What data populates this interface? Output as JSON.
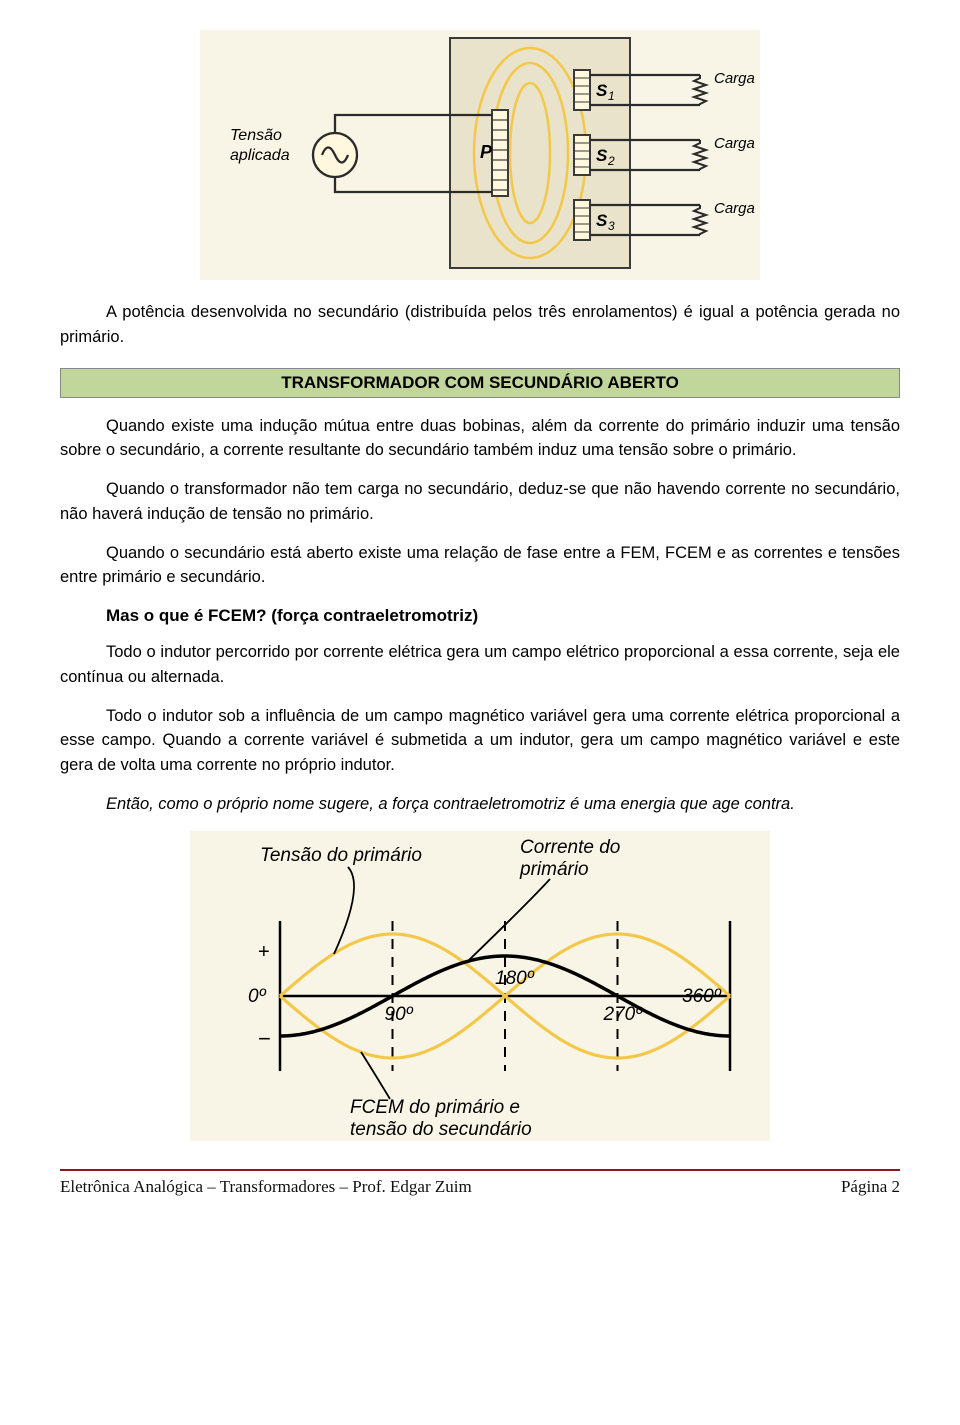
{
  "figure1": {
    "colors": {
      "border": "#2b2b2b",
      "core_fill": "#e8e2c8",
      "core_stroke": "#3a3a3a",
      "flux": "#f3c84a",
      "bg_cream": "#f9f5e6",
      "text": "#000000"
    },
    "labels": {
      "tensao_aplicada": "Tensão\naplicada",
      "P": "P",
      "S1": "S₁",
      "S2": "S₂",
      "S3": "S₃",
      "carga": "Carga"
    }
  },
  "para_intro": "A potência desenvolvida no secundário (distribuída pelos três enrolamentos) é igual a potência gerada no primário.",
  "section_title": "TRANSFORMADOR COM SECUNDÁRIO ABERTO",
  "para2": "Quando existe uma indução mútua entre duas bobinas, além da corrente do primário induzir uma tensão sobre o secundário, a corrente resultante do secundário também induz uma tensão sobre o primário.",
  "para3": "Quando o transformador não tem carga no secundário, deduz-se que não havendo corrente no secundário, não haverá indução de tensão no primário.",
  "para4": "Quando o secundário está aberto existe uma relação de fase entre a FEM, FCEM e as correntes e tensões entre primário e secundário.",
  "subheading": "Mas o que é FCEM? (força contraeletromotriz)",
  "para5": "Todo o indutor percorrido por corrente elétrica gera um campo elétrico proporcional a essa corrente, seja ele contínua ou alternada.",
  "para6": "Todo o indutor sob a influência de um campo magnético variável gera uma corrente elétrica proporcional a esse campo. Quando a corrente variável é submetida a um indutor, gera um campo magnético variável e este gera de volta uma corrente no próprio indutor.",
  "para7": "Então, como o próprio nome sugere, a força contraeletromotriz é uma energia que age contra.",
  "figure2": {
    "colors": {
      "bg": "#f9f5e6",
      "axis": "#000000",
      "primary_wave": "#f3c84a",
      "secondary_wave": "#000000",
      "dash": "#000000",
      "text": "#000000"
    },
    "labels": {
      "tensao_primario": "Tensão do primário",
      "corrente_primario": "Corrente do\nprimário",
      "fcem": "FCEM do primário e\ntensão do secundário",
      "zero": "0º",
      "d90": "90º",
      "d180": "180º",
      "d270": "270º",
      "d360": "360º",
      "plus": "+",
      "minus": "−"
    },
    "primary_amp": 62,
    "secondary_amp": 40
  },
  "footer_left": "Eletrônica Analógica – Transformadores – Prof. Edgar Zuim",
  "footer_right": "Página 2"
}
